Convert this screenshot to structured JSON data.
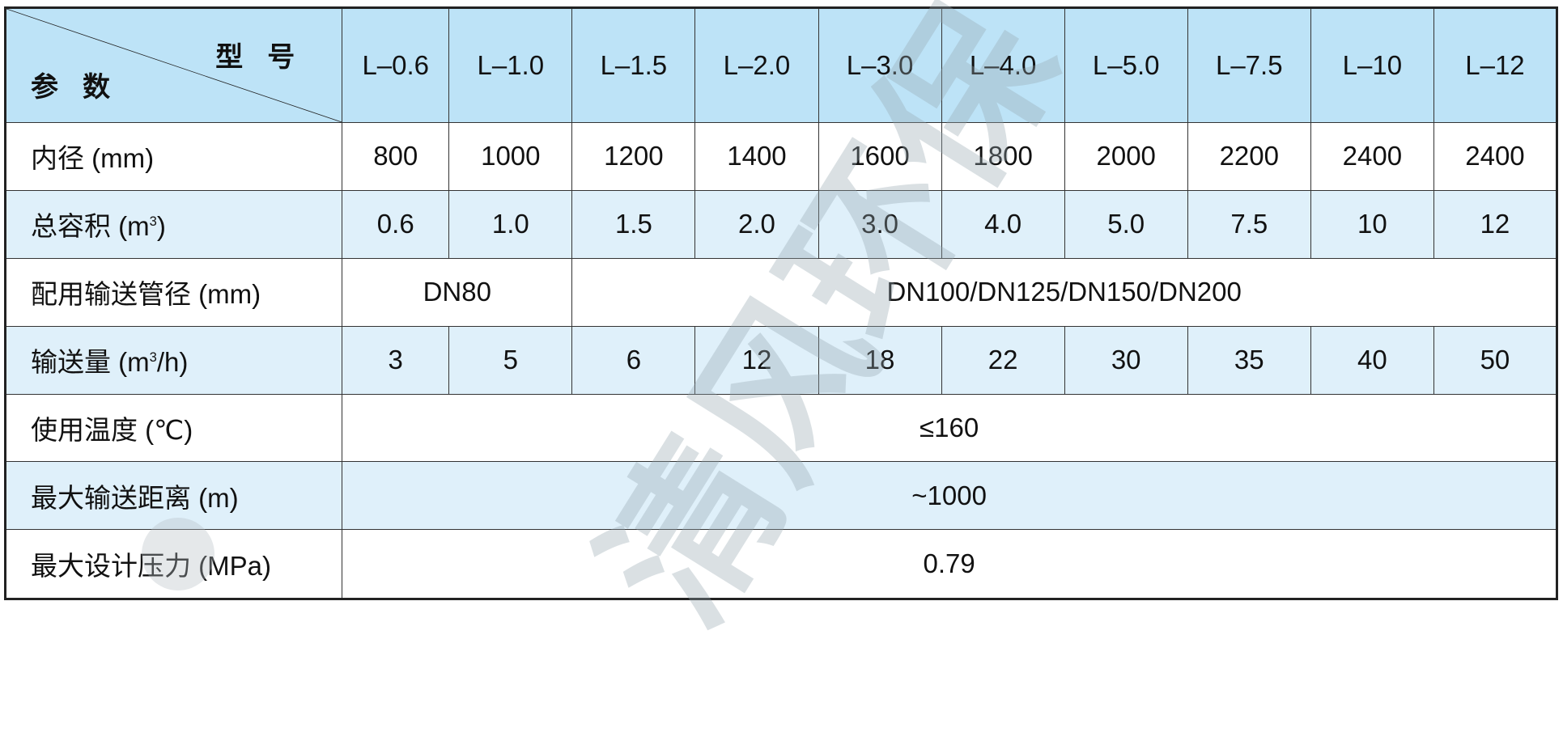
{
  "header": {
    "corner_top": "型号",
    "corner_bottom": "参数",
    "models": [
      "L–0.6",
      "L–1.0",
      "L–1.5",
      "L–2.0",
      "L–3.0",
      "L–4.0",
      "L–5.0",
      "L–7.5",
      "L–10",
      "L–12"
    ]
  },
  "rows": {
    "inner_diameter": {
      "label": "内径 (mm)",
      "values": [
        "800",
        "1000",
        "1200",
        "1400",
        "1600",
        "1800",
        "2000",
        "2200",
        "2400",
        "2400"
      ]
    },
    "total_volume": {
      "label_prefix": "总容积 (m",
      "label_sup": "3",
      "label_suffix": ")",
      "values": [
        "0.6",
        "1.0",
        "1.5",
        "2.0",
        "3.0",
        "4.0",
        "5.0",
        "7.5",
        "10",
        "12"
      ]
    },
    "pipe_diameter": {
      "label": "配用输送管径 (mm)",
      "values": [
        "DN80",
        "DN100/DN125/DN150/DN200"
      ]
    },
    "capacity": {
      "label_prefix": "输送量 (m",
      "label_sup": "3",
      "label_suffix": "/h)",
      "values": [
        "3",
        "5",
        "6",
        "12",
        "18",
        "22",
        "30",
        "35",
        "40",
        "50"
      ]
    },
    "temperature": {
      "label": "使用温度 (℃)",
      "value": "≤160"
    },
    "max_distance": {
      "label": "最大输送距离 (m)",
      "value": "~1000"
    },
    "max_pressure": {
      "label": "最大设计压力 (MPa)",
      "value": "0.79"
    }
  },
  "watermark": "清风环保",
  "colors": {
    "header_bg": "#bde3f7",
    "alt_row_bg": "#dff0fa",
    "border": "#333333"
  }
}
